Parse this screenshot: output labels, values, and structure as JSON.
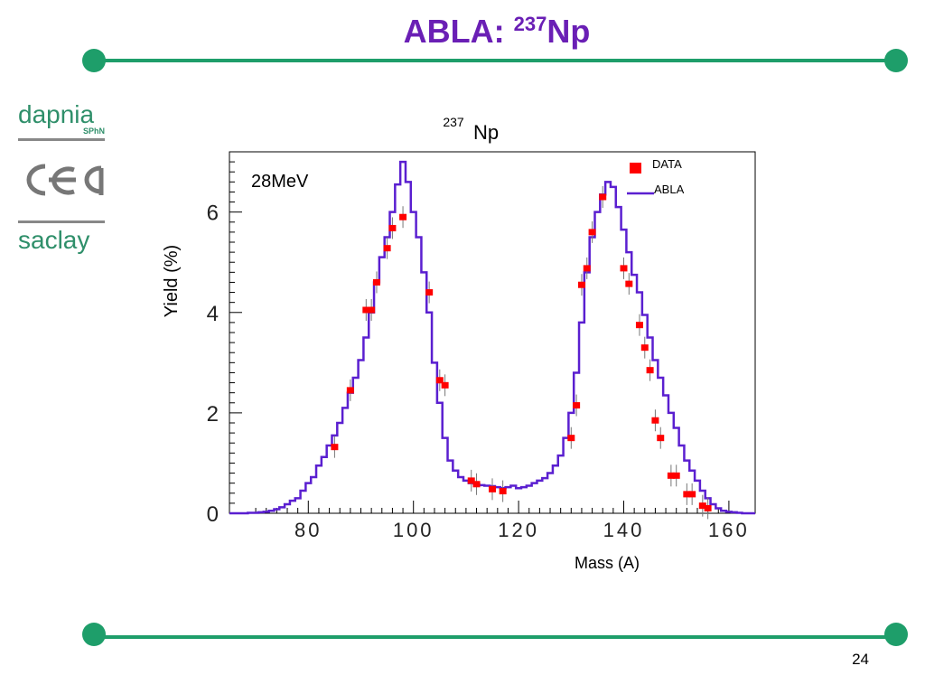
{
  "slide": {
    "title_base": "ABLA: ",
    "title_mass": "237",
    "title_symbol": "Np",
    "page_number": "24",
    "accent_color": "#1e9e6a",
    "title_color": "#6a1fb5"
  },
  "logos": {
    "dapnia": "dapnia",
    "dapnia_sub": "SPhN",
    "cea": "cea",
    "saclay": "saclay"
  },
  "chart_data": {
    "type": "line",
    "title_mass": "237",
    "title_symbol": "Np",
    "annotation": "28MeV",
    "xlabel": "Mass (A)",
    "ylabel": "Yield (%)",
    "xlim": [
      65,
      165
    ],
    "ylim": [
      0,
      7.2
    ],
    "x_ticks": [
      80,
      100,
      120,
      140,
      160
    ],
    "y_ticks": [
      0,
      2,
      4,
      6
    ],
    "legend": {
      "placement": "top-right",
      "entries": [
        "DATA",
        "ABLA"
      ]
    },
    "colors": {
      "data": "#ff0000",
      "abla": "#5a1fd0"
    },
    "series": [
      {
        "name": "ABLA",
        "style": "step",
        "x": [
          65,
          66,
          67,
          68,
          69,
          70,
          71,
          72,
          73,
          74,
          75,
          76,
          77,
          78,
          79,
          80,
          81,
          82,
          83,
          84,
          85,
          86,
          87,
          88,
          89,
          90,
          91,
          92,
          93,
          94,
          95,
          96,
          97,
          98,
          99,
          100,
          101,
          102,
          103,
          104,
          105,
          106,
          107,
          108,
          109,
          110,
          111,
          112,
          113,
          114,
          115,
          116,
          117,
          118,
          119,
          120,
          121,
          122,
          123,
          124,
          125,
          126,
          127,
          128,
          129,
          130,
          131,
          132,
          133,
          134,
          135,
          136,
          137,
          138,
          139,
          140,
          141,
          142,
          143,
          144,
          145,
          146,
          147,
          148,
          149,
          150,
          151,
          152,
          153,
          154,
          155,
          156,
          157,
          158,
          159,
          160,
          161,
          162,
          163,
          164,
          165
        ],
        "values": [
          0.0,
          0.0,
          0.0,
          0.0,
          0.01,
          0.01,
          0.02,
          0.03,
          0.05,
          0.08,
          0.12,
          0.18,
          0.25,
          0.3,
          0.45,
          0.6,
          0.72,
          0.95,
          1.12,
          1.35,
          1.55,
          1.8,
          2.1,
          2.4,
          2.7,
          3.05,
          3.5,
          4.0,
          4.6,
          5.1,
          5.5,
          6.0,
          6.55,
          7.0,
          6.6,
          6.0,
          5.5,
          4.8,
          4.0,
          3.0,
          2.2,
          1.5,
          1.05,
          0.85,
          0.72,
          0.65,
          0.6,
          0.58,
          0.56,
          0.55,
          0.54,
          0.52,
          0.5,
          0.52,
          0.55,
          0.5,
          0.52,
          0.55,
          0.6,
          0.65,
          0.7,
          0.8,
          0.95,
          1.15,
          1.5,
          2.0,
          2.8,
          3.8,
          4.8,
          5.5,
          6.0,
          6.35,
          6.6,
          6.5,
          6.1,
          5.65,
          5.2,
          4.75,
          4.4,
          3.95,
          3.5,
          3.05,
          2.7,
          2.35,
          2.0,
          1.7,
          1.35,
          1.05,
          0.85,
          0.65,
          0.45,
          0.3,
          0.18,
          0.1,
          0.05,
          0.03,
          0.02,
          0.01,
          0.0,
          0.0,
          0.0
        ]
      },
      {
        "name": "DATA",
        "style": "marker",
        "x": [
          85,
          88,
          91,
          92,
          93,
          95,
          96,
          98,
          103,
          105,
          106,
          111,
          112,
          115,
          117,
          130,
          131,
          132,
          133,
          134,
          136,
          140,
          141,
          143,
          144,
          145,
          146,
          147,
          149,
          150,
          152,
          153,
          155,
          156
        ],
        "values": [
          1.32,
          2.45,
          4.05,
          4.05,
          4.6,
          5.28,
          5.68,
          5.9,
          4.4,
          2.65,
          2.55,
          0.65,
          0.58,
          0.48,
          0.44,
          1.5,
          2.15,
          4.55,
          4.88,
          5.6,
          6.3,
          4.88,
          4.57,
          3.75,
          3.3,
          2.85,
          1.85,
          1.5,
          0.75,
          0.75,
          0.38,
          0.38,
          0.15,
          0.1
        ]
      }
    ]
  }
}
